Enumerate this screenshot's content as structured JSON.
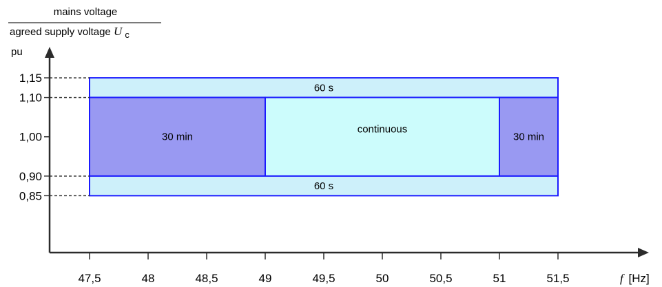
{
  "y_axis": {
    "title_numerator": "mains voltage",
    "title_denominator_prefix": "agreed supply voltage ",
    "title_denominator_symbol": "U",
    "title_denominator_subscript": "c",
    "unit": "pu"
  },
  "x_axis": {
    "symbol": "f",
    "unit": "[Hz]"
  },
  "colors": {
    "border": "#1a1aff",
    "light_fill": "#cdf0fa",
    "continuous_fill": "#ccfcfc",
    "thirty_min_fill": "#9999f2",
    "axis": "#2b2b2b"
  },
  "chart_data": {
    "type": "region-diagram",
    "xlim": [
      47.0,
      52.2
    ],
    "ylim": [
      0.7,
      1.25
    ],
    "x_ticks": [
      {
        "value": 47.5,
        "label": "47,5"
      },
      {
        "value": 48.0,
        "label": "48"
      },
      {
        "value": 48.5,
        "label": "48,5"
      },
      {
        "value": 49.0,
        "label": "49"
      },
      {
        "value": 49.5,
        "label": "49,5"
      },
      {
        "value": 50.0,
        "label": "50"
      },
      {
        "value": 50.5,
        "label": "50,5"
      },
      {
        "value": 51.0,
        "label": "51"
      },
      {
        "value": 51.5,
        "label": "51,5"
      }
    ],
    "y_ticks": [
      {
        "value": 1.15,
        "label": "1,15",
        "dashed": true
      },
      {
        "value": 1.1,
        "label": "1,10",
        "dashed": true
      },
      {
        "value": 1.0,
        "label": "1,00",
        "dashed": false
      },
      {
        "value": 0.9,
        "label": "0,90",
        "dashed": true
      },
      {
        "value": 0.85,
        "label": "0,85",
        "dashed": true
      }
    ],
    "regions": [
      {
        "name": "upper-60s",
        "label": "60 s",
        "x": [
          47.5,
          51.5
        ],
        "y": [
          1.1,
          1.15
        ],
        "fill": "light_fill"
      },
      {
        "name": "left-30min",
        "label": "30 min",
        "x": [
          47.5,
          49.0
        ],
        "y": [
          0.9,
          1.1
        ],
        "fill": "thirty_min_fill"
      },
      {
        "name": "continuous",
        "label": "continuous",
        "x": [
          49.0,
          51.0
        ],
        "y": [
          0.9,
          1.1
        ],
        "fill": "continuous_fill",
        "label_offset_y": -0.02
      },
      {
        "name": "right-30min",
        "label": "30 min",
        "x": [
          51.0,
          51.5
        ],
        "y": [
          0.9,
          1.1
        ],
        "fill": "thirty_min_fill"
      },
      {
        "name": "lower-60s",
        "label": "60 s",
        "x": [
          47.5,
          51.5
        ],
        "y": [
          0.85,
          0.9
        ],
        "fill": "light_fill"
      }
    ]
  }
}
